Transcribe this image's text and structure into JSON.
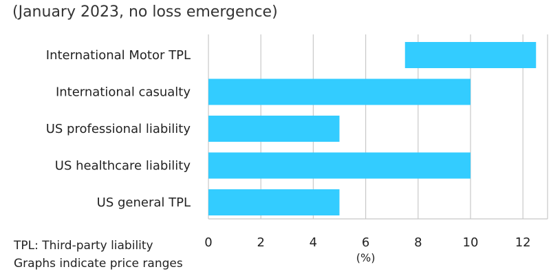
{
  "subtitle": "(January 2023, no loss emergence)",
  "notes": {
    "line1": "TPL: Third-party liability",
    "line2": "Graphs indicate price ranges"
  },
  "chart_data": {
    "type": "bar",
    "orientation": "horizontal",
    "subtitle": "(January 2023, no loss emergence)",
    "categories": [
      "International Motor TPL",
      "International casualty",
      "US professional liability",
      "US healthcare liability",
      "US general TPL"
    ],
    "ranges": [
      [
        7.5,
        12.5
      ],
      [
        0,
        10
      ],
      [
        0,
        5
      ],
      [
        0,
        10
      ],
      [
        0,
        5
      ]
    ],
    "xlabel": "(%)",
    "xlim": [
      0,
      13
    ],
    "xticks": [
      0,
      2,
      4,
      6,
      8,
      10,
      12
    ],
    "grid": "vertical",
    "bar_color": "#33ccff",
    "grid_color": "#c8c8c8"
  }
}
